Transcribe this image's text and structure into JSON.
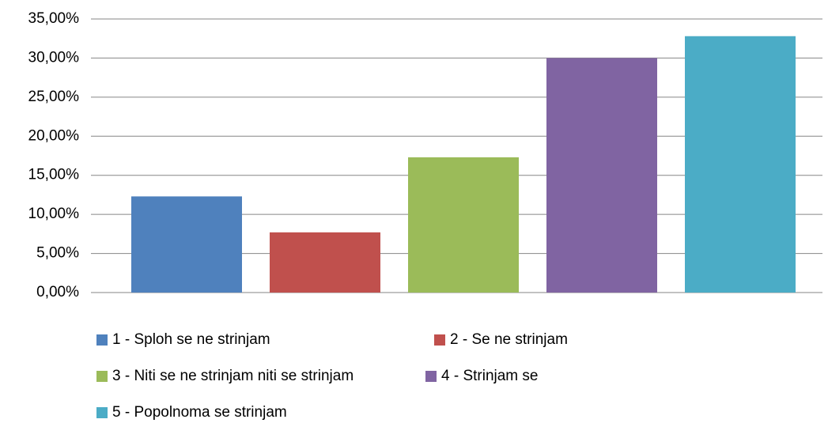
{
  "chart_data": {
    "type": "bar",
    "series": [
      {
        "name": "1 - Sploh se ne strinjam",
        "color": "#4f81bd",
        "values": [
          12.3
        ]
      },
      {
        "name": "2 - Se ne strinjam",
        "color": "#c0504d",
        "values": [
          7.7
        ]
      },
      {
        "name": "3 - Niti se ne strinjam niti se strinjam",
        "color": "#9bbb59",
        "values": [
          17.3
        ]
      },
      {
        "name": "4 - Strinjam se",
        "color": "#8064a2",
        "values": [
          30.0
        ]
      },
      {
        "name": "5 - Popolnoma se strinjam",
        "color": "#4bacc6",
        "values": [
          32.8
        ]
      }
    ],
    "ylim": [
      0,
      35
    ],
    "yticks": [
      {
        "value": 0,
        "label": "0,00%"
      },
      {
        "value": 5,
        "label": "5,00%"
      },
      {
        "value": 10,
        "label": "10,00%"
      },
      {
        "value": 15,
        "label": "15,00%"
      },
      {
        "value": 20,
        "label": "20,00%"
      },
      {
        "value": 25,
        "label": "25,00%"
      },
      {
        "value": 30,
        "label": "30,00%"
      },
      {
        "value": 35,
        "label": "35,00%"
      }
    ],
    "grid": true,
    "legend": "bottom"
  }
}
